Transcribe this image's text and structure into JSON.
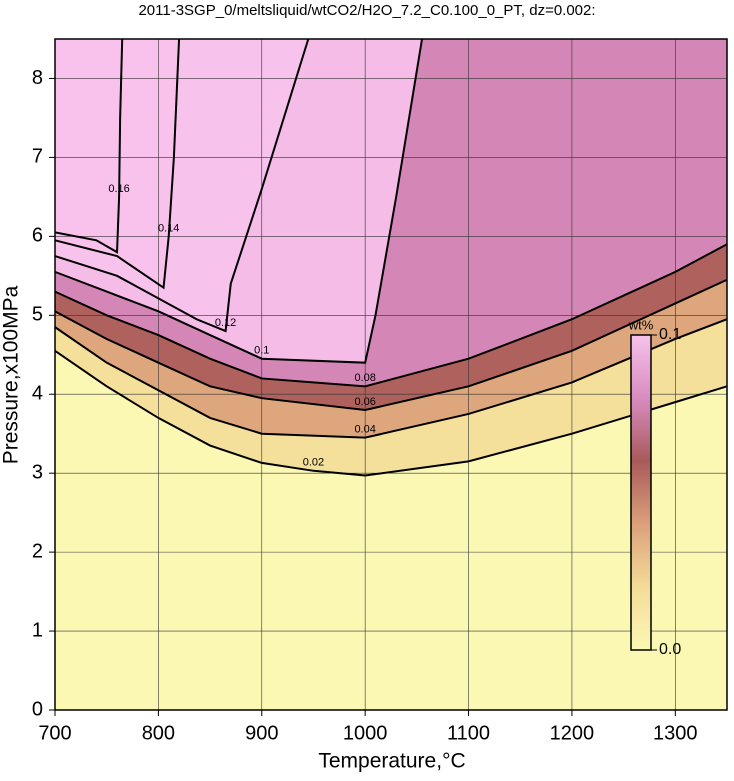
{
  "chart_data": {
    "type": "contour",
    "title": "2011-3SGP_0/meltsliquid/wtCO2/H2O_7.2_C0.100_0_PT, dz=0.002:",
    "x_label": "Temperature,°C",
    "y_label": "Pressure,x100MPa",
    "xlim": [
      700,
      1350
    ],
    "ylim": [
      0,
      8.5
    ],
    "xticks": [
      700,
      800,
      900,
      1000,
      1100,
      1200,
      1300
    ],
    "yticks": [
      0,
      1,
      2,
      3,
      4,
      5,
      6,
      7,
      8
    ],
    "grid": true,
    "colormap": [
      "#fbf8b4",
      "#f3dc98",
      "#dca07a",
      "#a85a5a",
      "#d88cc0",
      "#f7c2ec"
    ],
    "colorbar": {
      "label": "wt%",
      "lim": [
        0,
        0.1
      ],
      "ticks": [
        {
          "value": 0,
          "label": "0.0"
        },
        0.1
      ]
    },
    "contours": [
      {
        "level": 0.02,
        "x": [
          700,
          750,
          800,
          850,
          900,
          950,
          1000,
          1100,
          1200,
          1300,
          1350
        ],
        "y": [
          4.55,
          4.1,
          3.7,
          3.35,
          3.13,
          3.03,
          2.97,
          3.15,
          3.5,
          3.9,
          4.1
        ]
      },
      {
        "level": 0.04,
        "x": [
          700,
          750,
          800,
          850,
          900,
          1000,
          1100,
          1200,
          1300,
          1350
        ],
        "y": [
          4.85,
          4.4,
          4.05,
          3.7,
          3.5,
          3.45,
          3.75,
          4.15,
          4.7,
          4.95
        ]
      },
      {
        "level": 0.06,
        "x": [
          700,
          750,
          800,
          850,
          900,
          1000,
          1100,
          1200,
          1300,
          1350
        ],
        "y": [
          5.05,
          4.7,
          4.4,
          4.1,
          3.95,
          3.8,
          4.1,
          4.55,
          5.15,
          5.45
        ]
      },
      {
        "level": 0.08,
        "x": [
          700,
          750,
          800,
          850,
          900,
          1000,
          1100,
          1200,
          1300,
          1350
        ],
        "y": [
          5.3,
          5.0,
          4.75,
          4.45,
          4.2,
          4.1,
          4.45,
          4.95,
          5.55,
          5.9
        ]
      },
      {
        "level": 0.1,
        "x": [
          700,
          750,
          800,
          850,
          900,
          1000,
          1010,
          1030,
          1055
        ],
        "y": [
          5.55,
          5.3,
          5.05,
          4.75,
          4.45,
          4.4,
          5.0,
          6.5,
          8.5
        ]
      },
      {
        "level": 0.12,
        "x": [
          700,
          760,
          837,
          865,
          870,
          900,
          945
        ],
        "y": [
          5.75,
          5.5,
          4.95,
          4.8,
          5.4,
          6.6,
          8.5
        ]
      },
      {
        "level": 0.14,
        "x": [
          700,
          760,
          805,
          810,
          815,
          820
        ],
        "y": [
          5.95,
          5.75,
          5.35,
          6.0,
          7.0,
          8.5
        ]
      },
      {
        "level": 0.16,
        "x": [
          700,
          740,
          760,
          762,
          763,
          765
        ],
        "y": [
          6.05,
          5.95,
          5.8,
          6.5,
          7.5,
          8.5
        ]
      }
    ]
  }
}
